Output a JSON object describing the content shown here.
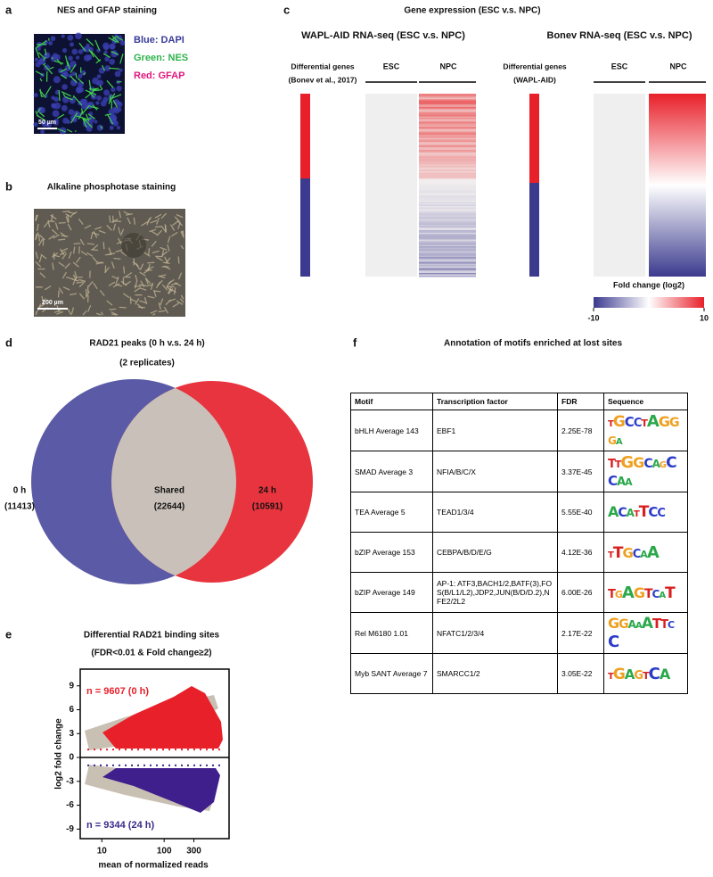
{
  "panel_labels": [
    "a",
    "b",
    "c",
    "d",
    "e",
    "f"
  ],
  "a": {
    "title": "NES and GFAP  staining",
    "scale_bar": "50 µm",
    "legend": [
      "Blue: DAPI",
      "Green: NES",
      "Red: GFAP"
    ]
  },
  "b": {
    "title": "Alkaline phosphotase staining",
    "scale_bar": "200 µm"
  },
  "c": {
    "title": "Gene expression (ESC v.s. NPC)",
    "heatmaps": [
      {
        "title": "WAPL-AID RNA-seq (ESC v.s. NPC)",
        "row_label": [
          "Differential genes",
          "(Bonev et al., 2017)"
        ],
        "columns": [
          "ESC",
          "NPC"
        ]
      },
      {
        "title": "Bonev RNA-seq (ESC v.s. NPC)",
        "row_label": [
          "Differential genes",
          "(WAPL-AID)"
        ],
        "columns": [
          "ESC",
          "NPC"
        ]
      }
    ],
    "colorbar": {
      "label": "Fold change (log2)",
      "lim": [
        -10,
        10
      ],
      "ticks": [
        -10,
        10
      ]
    }
  },
  "d": {
    "title": "RAD21 peaks (0 h v.s. 24 h)",
    "subtitle": "(2 replicates)",
    "sets": [
      {
        "name": "0 h",
        "count": "(11413)",
        "color": "#5b5aa6"
      },
      {
        "name": "Shared",
        "count": "(22644)",
        "color": "#c9c1b9"
      },
      {
        "name": "24 h",
        "count": "(10591)",
        "color": "#e8343e"
      }
    ]
  },
  "e": {
    "title": "Differential RAD21 binding sites",
    "subtitle": "(FDR<0.01 & Fold change≥2)",
    "xlabel": "mean of normalized reads",
    "ylabel": "log2 fold change",
    "xscale": "log",
    "xlim": [
      4.5,
      1100
    ],
    "xticks": [
      10,
      100,
      300
    ],
    "ylim": [
      -10.2,
      11.1
    ],
    "yticks": [
      9,
      6,
      3,
      0,
      -3,
      -6,
      -9
    ],
    "thresholds": [
      1,
      -1
    ],
    "annotations": [
      {
        "text": "n = 9607 (0 h)",
        "color": "#e8202a"
      },
      {
        "text": "n = 9344 (24 h)",
        "color": "#3a2a8a"
      }
    ]
  },
  "f": {
    "title": "Annotation of motifs enriched at lost sites",
    "table": {
      "header": [
        "Motif",
        "Transcription factor",
        "FDR",
        "Sequence"
      ],
      "rows": [
        [
          "bHLH Average 143",
          "EBF1",
          "2.25E-78",
          "TGCCTAGGGA"
        ],
        [
          "SMAD Average 3",
          "NFIA/B/C/X",
          "3.37E-45",
          "TTGGCAGCCAA"
        ],
        [
          "TEA Average 5",
          "TEAD1/3/4",
          "5.55E-40",
          "ACATTCC"
        ],
        [
          "bZIP Average 153",
          "CEBPA/B/D/E/G",
          "4.12E-36",
          "TTGCAA"
        ],
        [
          "bZIP Average 149",
          "AP-1: ATF3,BACH1/2,BATF(3),FOS(B/L1/L2),JDP2,JUN(B/D/D.2),NFE2/2L2",
          "6.00E-26",
          "TGAGTCAT"
        ],
        [
          "Rel M6180 1.01",
          "NFATC1/2/3/4",
          "2.17E-22",
          "GGAAATTCC"
        ],
        [
          "Myb SANT Average 7",
          "SMARCC1/2",
          "3.05E-22",
          "TGAGTCA"
        ]
      ]
    }
  }
}
